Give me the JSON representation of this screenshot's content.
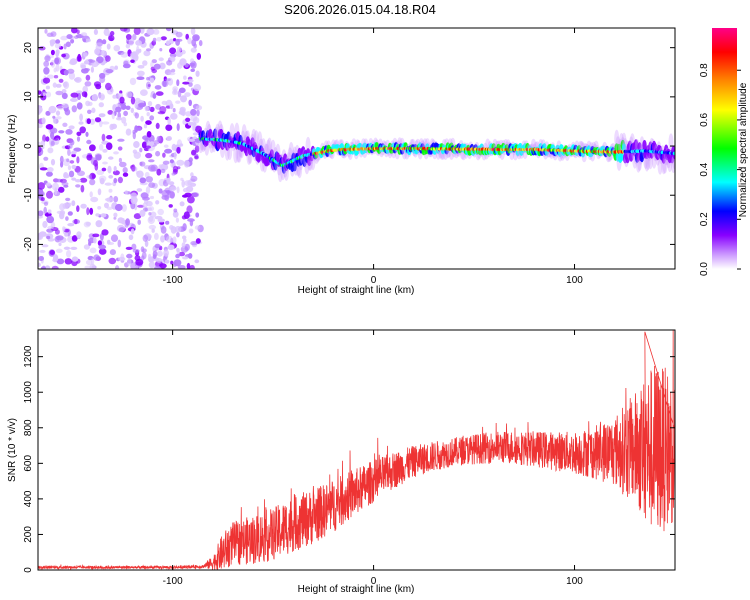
{
  "title": "S206.2026.015.04.18.R04",
  "chart_data": [
    {
      "type": "heatmap",
      "xlabel": "Height of straight line (km)",
      "ylabel": "Frequency (Hz)",
      "xlim": [
        -167,
        150
      ],
      "ylim": [
        -25,
        24
      ],
      "xticks": [
        -100,
        0,
        100
      ],
      "yticks": [
        -20,
        -10,
        0,
        10,
        20
      ],
      "colorbar": {
        "label": "Normalized spectral amplitude",
        "range": [
          0,
          0.97
        ],
        "ticks": [
          0.0,
          0.2,
          0.4,
          0.6,
          0.8
        ],
        "colors": [
          "#ffffff",
          "#cc99ff",
          "#8800ff",
          "#0000ff",
          "#00ffff",
          "#00ff00",
          "#ffff00",
          "#ff8800",
          "#ff0000",
          "#ff0088"
        ]
      },
      "features": [
        {
          "name": "noise region",
          "x_range": [
            -167,
            -86
          ],
          "freq_range": [
            -25,
            24
          ],
          "amplitude": 0.15
        },
        {
          "name": "signal ridge",
          "points": [
            [
              -86,
              1.5
            ],
            [
              -75,
              1.2
            ],
            [
              -65,
              0.5
            ],
            [
              -55,
              -1.5
            ],
            [
              -45,
              -4.0
            ],
            [
              -35,
              -2.0
            ],
            [
              -20,
              -0.8
            ],
            [
              0,
              -0.5
            ],
            [
              20,
              -0.5
            ],
            [
              40,
              -0.6
            ],
            [
              60,
              -0.7
            ],
            [
              80,
              -0.7
            ],
            [
              100,
              -1.0
            ],
            [
              120,
              -1.2
            ],
            [
              135,
              -1.0
            ],
            [
              150,
              -1.5
            ]
          ],
          "peak_amplitude": 0.95
        }
      ]
    },
    {
      "type": "line",
      "xlabel": "Height of straight line (km)",
      "ylabel": "SNR (10 * v/v)",
      "xlim": [
        -167,
        150
      ],
      "ylim": [
        0,
        1350
      ],
      "xticks": [
        -100,
        0,
        100
      ],
      "yticks": [
        0,
        200,
        400,
        600,
        800,
        1000,
        1200
      ],
      "color": "#ee3333",
      "trend": [
        [
          -167,
          15
        ],
        [
          -100,
          15
        ],
        [
          -85,
          20
        ],
        [
          -80,
          40
        ],
        [
          -75,
          100
        ],
        [
          -70,
          150
        ],
        [
          -60,
          170
        ],
        [
          -50,
          200
        ],
        [
          -40,
          260
        ],
        [
          -30,
          300
        ],
        [
          -20,
          360
        ],
        [
          -10,
          430
        ],
        [
          0,
          500
        ],
        [
          10,
          560
        ],
        [
          20,
          610
        ],
        [
          30,
          640
        ],
        [
          40,
          665
        ],
        [
          50,
          680
        ],
        [
          60,
          690
        ],
        [
          70,
          690
        ],
        [
          80,
          680
        ],
        [
          90,
          670
        ],
        [
          100,
          660
        ],
        [
          110,
          660
        ],
        [
          120,
          670
        ],
        [
          130,
          680
        ],
        [
          140,
          680
        ],
        [
          150,
          680
        ]
      ],
      "noise_amplitude": [
        [
          -167,
          8
        ],
        [
          -100,
          8
        ],
        [
          -85,
          10
        ],
        [
          -80,
          40
        ],
        [
          -75,
          110
        ],
        [
          -60,
          140
        ],
        [
          -40,
          160
        ],
        [
          -20,
          150
        ],
        [
          0,
          120
        ],
        [
          20,
          90
        ],
        [
          40,
          80
        ],
        [
          60,
          90
        ],
        [
          80,
          100
        ],
        [
          100,
          120
        ],
        [
          110,
          150
        ],
        [
          120,
          200
        ],
        [
          130,
          320
        ],
        [
          140,
          500
        ],
        [
          150,
          420
        ]
      ],
      "peak": {
        "x": 135,
        "y": 1340
      }
    }
  ]
}
